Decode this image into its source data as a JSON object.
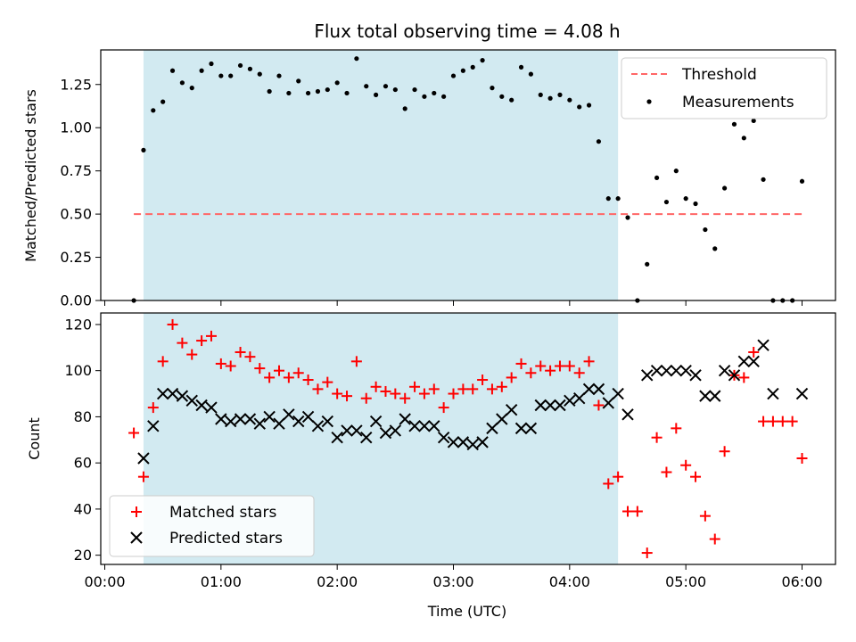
{
  "chart_data": [
    {
      "type": "scatter",
      "title": "Flux total observing time = 4.08 h",
      "xlabel": "",
      "ylabel": "Matched/Predicted stars",
      "xlim": [
        "00:00",
        "06:00"
      ],
      "ylim": [
        0,
        1.45
      ],
      "yticks": [
        0.0,
        0.25,
        0.5,
        0.75,
        1.0,
        1.25
      ],
      "ytick_labels": [
        "0.00",
        "0.25",
        "0.50",
        "0.75",
        "1.00",
        "1.25"
      ],
      "shaded_region": {
        "x_start": "00:20",
        "x_end": "04:25",
        "color": "#add8e6"
      },
      "threshold": {
        "name": "Threshold",
        "y": 0.5,
        "x_start": "00:15",
        "x_end": "06:00",
        "color": "#ff6666"
      },
      "legend": {
        "location": "upper right",
        "entries": [
          "Threshold",
          "Measurements"
        ]
      },
      "series": [
        {
          "name": "Measurements",
          "marker": "dot",
          "color": "#000000",
          "x": [
            "00:15",
            "00:20",
            "00:25",
            "00:30",
            "00:35",
            "00:40",
            "00:45",
            "00:50",
            "00:55",
            "01:00",
            "01:05",
            "01:10",
            "01:15",
            "01:20",
            "01:25",
            "01:30",
            "01:35",
            "01:40",
            "01:45",
            "01:50",
            "01:55",
            "02:00",
            "02:05",
            "02:10",
            "02:15",
            "02:20",
            "02:25",
            "02:30",
            "02:35",
            "02:40",
            "02:45",
            "02:50",
            "02:55",
            "03:00",
            "03:05",
            "03:10",
            "03:15",
            "03:20",
            "03:25",
            "03:30",
            "03:35",
            "03:40",
            "03:45",
            "03:50",
            "03:55",
            "04:00",
            "04:05",
            "04:10",
            "04:15",
            "04:20",
            "04:25",
            "04:30",
            "04:35",
            "04:40",
            "04:45",
            "04:50",
            "04:55",
            "05:00",
            "05:05",
            "05:10",
            "05:15",
            "05:20",
            "05:25",
            "05:30",
            "05:35",
            "05:40",
            "05:45",
            "05:50",
            "05:55",
            "06:00"
          ],
          "y": [
            0.0,
            0.87,
            1.1,
            1.15,
            1.33,
            1.26,
            1.23,
            1.33,
            1.37,
            1.3,
            1.3,
            1.36,
            1.34,
            1.31,
            1.21,
            1.3,
            1.2,
            1.27,
            1.2,
            1.21,
            1.22,
            1.26,
            1.2,
            1.4,
            1.24,
            1.19,
            1.24,
            1.22,
            1.11,
            1.22,
            1.18,
            1.2,
            1.18,
            1.3,
            1.33,
            1.35,
            1.39,
            1.23,
            1.18,
            1.16,
            1.35,
            1.31,
            1.19,
            1.17,
            1.19,
            1.16,
            1.12,
            1.13,
            0.92,
            0.59,
            0.59,
            0.48,
            0.0,
            0.21,
            0.71,
            0.57,
            0.75,
            0.59,
            0.56,
            0.41,
            0.3,
            0.65,
            1.02,
            0.94,
            1.04,
            0.7,
            0.0,
            0.0,
            0.0,
            0.69
          ]
        }
      ]
    },
    {
      "type": "scatter",
      "title": "",
      "xlabel": "Time (UTC)",
      "ylabel": "Count",
      "xlim": [
        "00:00",
        "06:00"
      ],
      "ylim": [
        16,
        125
      ],
      "yticks": [
        20,
        40,
        60,
        80,
        100,
        120
      ],
      "ytick_labels": [
        "20",
        "40",
        "60",
        "80",
        "100",
        "120"
      ],
      "xtick_labels": [
        "00:00",
        "01:00",
        "02:00",
        "03:00",
        "04:00",
        "05:00",
        "06:00"
      ],
      "shaded_region": {
        "x_start": "00:20",
        "x_end": "04:25",
        "color": "#add8e6"
      },
      "legend": {
        "location": "lower left",
        "entries": [
          "Matched stars",
          "Predicted stars"
        ]
      },
      "series": [
        {
          "name": "Matched stars",
          "marker": "plus",
          "color": "#ff0000",
          "x": [
            "00:15",
            "00:20",
            "00:25",
            "00:30",
            "00:35",
            "00:40",
            "00:45",
            "00:50",
            "00:55",
            "01:00",
            "01:05",
            "01:10",
            "01:15",
            "01:20",
            "01:25",
            "01:30",
            "01:35",
            "01:40",
            "01:45",
            "01:50",
            "01:55",
            "02:00",
            "02:05",
            "02:10",
            "02:15",
            "02:20",
            "02:25",
            "02:30",
            "02:35",
            "02:40",
            "02:45",
            "02:50",
            "02:55",
            "03:00",
            "03:05",
            "03:10",
            "03:15",
            "03:20",
            "03:25",
            "03:30",
            "03:35",
            "03:40",
            "03:45",
            "03:50",
            "03:55",
            "04:00",
            "04:05",
            "04:10",
            "04:15",
            "04:20",
            "04:25",
            "04:30",
            "04:35",
            "04:40",
            "04:45",
            "04:50",
            "04:55",
            "05:00",
            "05:05",
            "05:10",
            "05:15",
            "05:20",
            "05:25",
            "05:30",
            "05:35",
            "05:40",
            "05:45",
            "05:50",
            "05:55",
            "06:00"
          ],
          "y": [
            73,
            54,
            84,
            104,
            120,
            112,
            107,
            113,
            115,
            103,
            102,
            108,
            106,
            101,
            97,
            100,
            97,
            99,
            96,
            92,
            95,
            90,
            89,
            104,
            88,
            93,
            91,
            90,
            88,
            93,
            90,
            92,
            84,
            90,
            92,
            92,
            96,
            92,
            93,
            97,
            103,
            99,
            102,
            100,
            102,
            102,
            99,
            104,
            85,
            51,
            54,
            39,
            39,
            21,
            71,
            56,
            75,
            59,
            54,
            37,
            27,
            65,
            98,
            97,
            108,
            78,
            78,
            78,
            78,
            62
          ]
        },
        {
          "name": "Predicted stars",
          "marker": "x",
          "color": "#000000",
          "x": [
            "00:20",
            "00:25",
            "00:30",
            "00:35",
            "00:40",
            "00:45",
            "00:50",
            "00:55",
            "01:00",
            "01:05",
            "01:10",
            "01:15",
            "01:20",
            "01:25",
            "01:30",
            "01:35",
            "01:40",
            "01:45",
            "01:50",
            "01:55",
            "02:00",
            "02:05",
            "02:10",
            "02:15",
            "02:20",
            "02:25",
            "02:30",
            "02:35",
            "02:40",
            "02:45",
            "02:50",
            "02:55",
            "03:00",
            "03:05",
            "03:10",
            "03:15",
            "03:20",
            "03:25",
            "03:30",
            "03:35",
            "03:40",
            "03:45",
            "03:50",
            "03:55",
            "04:00",
            "04:05",
            "04:10",
            "04:15",
            "04:20",
            "04:25",
            "04:30",
            "04:40",
            "04:45",
            "04:50",
            "04:55",
            "05:00",
            "05:05",
            "05:10",
            "05:15",
            "05:20",
            "05:25",
            "05:30",
            "05:35",
            "05:40",
            "05:45",
            "06:00"
          ],
          "y": [
            62,
            76,
            90,
            90,
            89,
            87,
            85,
            84,
            79,
            78,
            79,
            79,
            77,
            80,
            77,
            81,
            78,
            80,
            76,
            78,
            71,
            74,
            74,
            71,
            78,
            73,
            74,
            79,
            76,
            76,
            76,
            71,
            69,
            69,
            68,
            69,
            75,
            79,
            83,
            75,
            75,
            85,
            85,
            85,
            87,
            88,
            92,
            92,
            86,
            90,
            81,
            98,
            100,
            100,
            100,
            100,
            98,
            89,
            89,
            100,
            98,
            104,
            104,
            111,
            90,
            90
          ]
        }
      ]
    }
  ]
}
